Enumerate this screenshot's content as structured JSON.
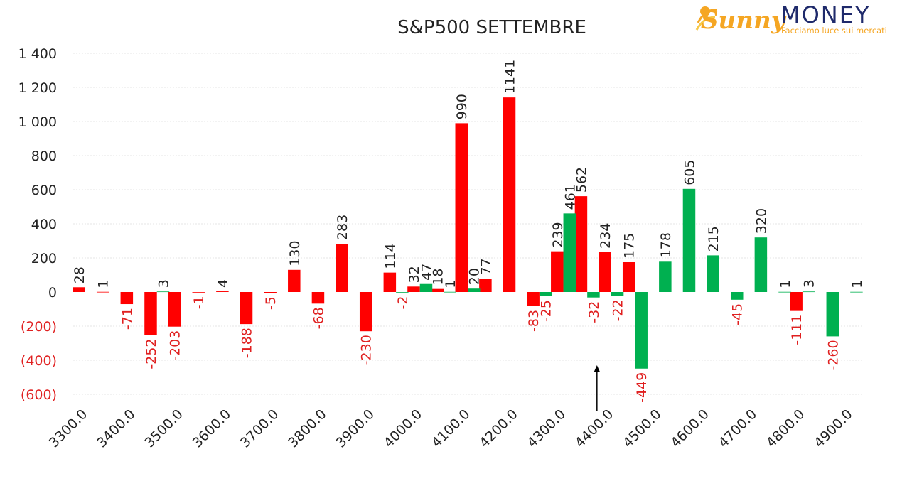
{
  "chart_data": {
    "type": "bar",
    "title": "S&P500 SETTEMBRE",
    "ylim": [
      -600,
      1400
    ],
    "yticks": [
      {
        "value": 1400,
        "label": "1 400"
      },
      {
        "value": 1200,
        "label": "1 200"
      },
      {
        "value": 1000,
        "label": "1 000"
      },
      {
        "value": 800,
        "label": "800"
      },
      {
        "value": 600,
        "label": "600"
      },
      {
        "value": 400,
        "label": "400"
      },
      {
        "value": 200,
        "label": "200"
      },
      {
        "value": 0,
        "label": "0"
      },
      {
        "value": -200,
        "label": "(200)"
      },
      {
        "value": -400,
        "label": "(400)"
      },
      {
        "value": -600,
        "label": "(600)"
      }
    ],
    "categories": [
      "3300.0",
      "3350.0",
      "3400.0",
      "3450.0",
      "3500.0",
      "3550.0",
      "3600.0",
      "3650.0",
      "3700.0",
      "3750.0",
      "3800.0",
      "3850.0",
      "3900.0",
      "3950.0",
      "4000.0",
      "4050.0",
      "4100.0",
      "4150.0",
      "4200.0",
      "4250.0",
      "4300.0",
      "4350.0",
      "4400.0",
      "4450.0",
      "4500.0",
      "4550.0",
      "4600.0",
      "4650.0",
      "4700.0",
      "4750.0",
      "4800.0",
      "4850.0",
      "4900.0"
    ],
    "x_tick_labels": [
      "3300.0",
      "3400.0",
      "3500.0",
      "3600.0",
      "3700.0",
      "3800.0",
      "3900.0",
      "4000.0",
      "4100.0",
      "4200.0",
      "4300.0",
      "4400.0",
      "4500.0",
      "4600.0",
      "4700.0",
      "4800.0",
      "4900.0"
    ],
    "grid": true,
    "series": [
      {
        "color": "#ff0000",
        "values": [
          28,
          1,
          -71,
          -252,
          -203,
          -1,
          4,
          -188,
          -5,
          130,
          -68,
          283,
          -230,
          114,
          32,
          18,
          990,
          77,
          1141,
          -83,
          239,
          562,
          234,
          175,
          null,
          null,
          null,
          null,
          null,
          null,
          -111,
          null,
          null
        ]
      },
      {
        "color": "#00b050",
        "values": [
          null,
          null,
          null,
          3,
          null,
          null,
          null,
          null,
          null,
          null,
          null,
          null,
          null,
          -2,
          47,
          1,
          20,
          null,
          null,
          -25,
          461,
          -32,
          -22,
          -449,
          178,
          605,
          215,
          -45,
          320,
          1,
          3,
          -260,
          1
        ]
      }
    ],
    "annotation": {
      "type": "arrow",
      "category": "4400.0"
    }
  },
  "logo": {
    "name_part1": "Sunny",
    "name_part2": "MONEY",
    "tagline": "Facciamo luce sui mercati",
    "accent_orange": "#f5a623",
    "accent_navy": "#1f2a6b"
  },
  "colors": {
    "negative_label": "#e02020",
    "positive_label": "#222222"
  }
}
